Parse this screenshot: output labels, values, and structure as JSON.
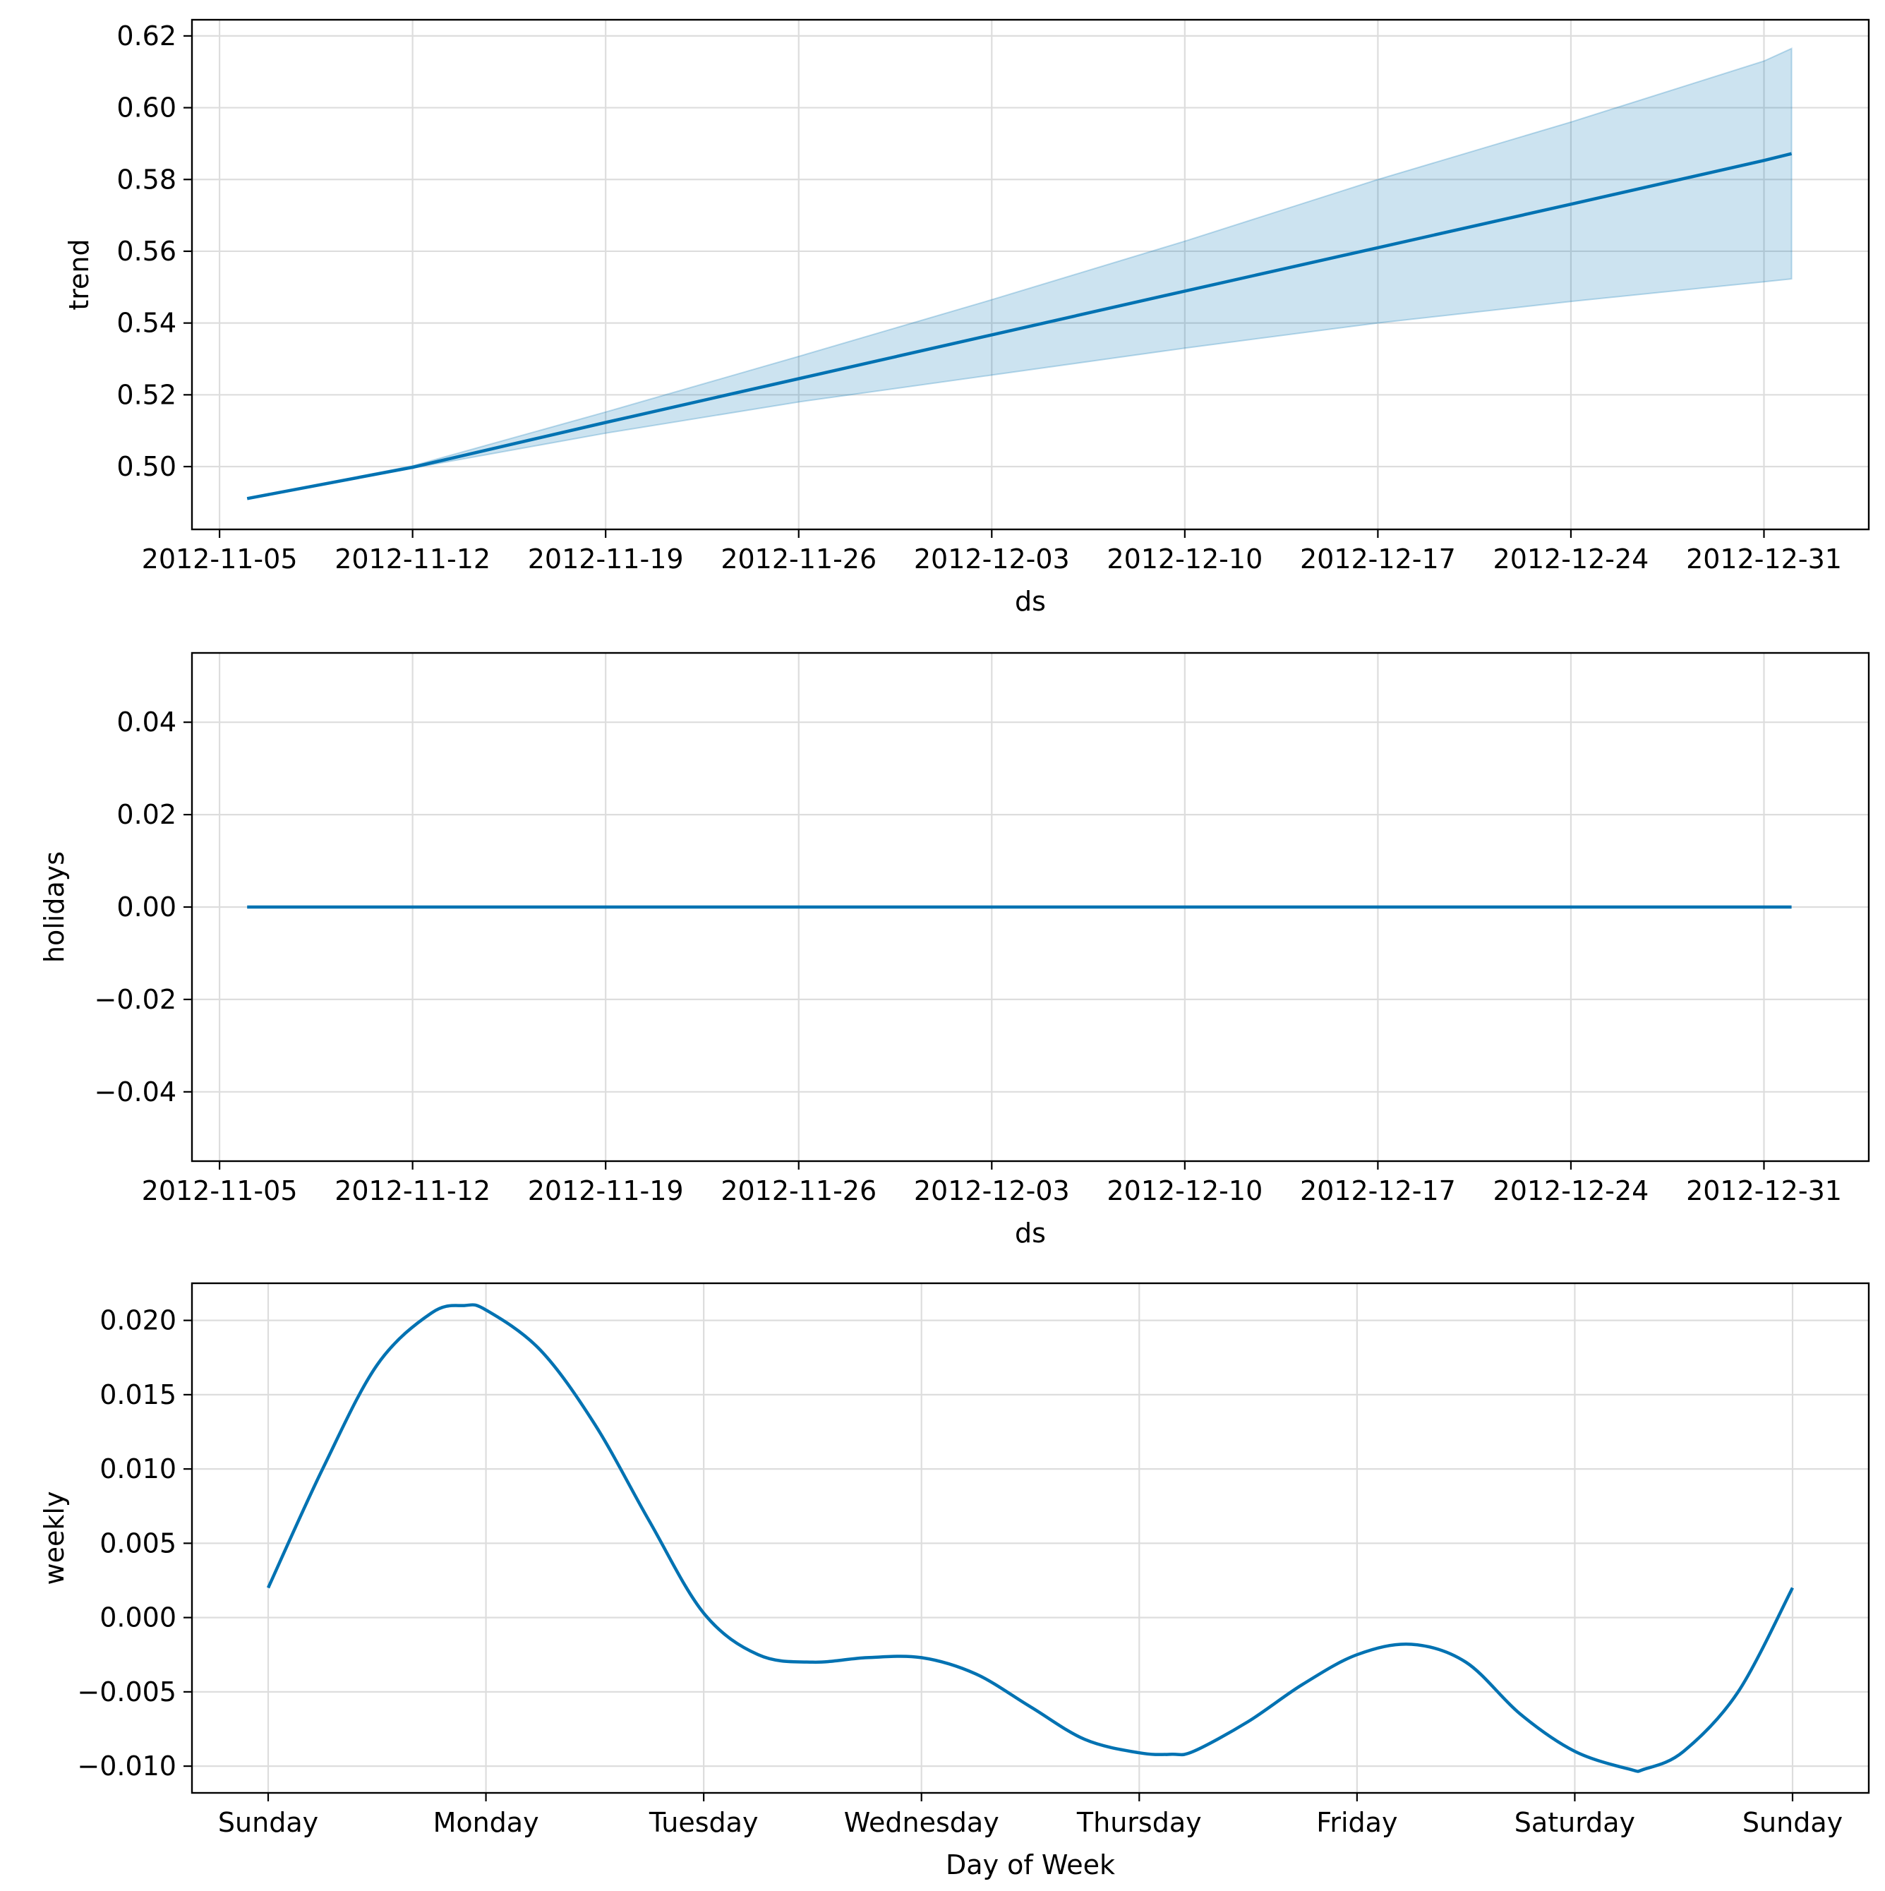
{
  "colors": {
    "line": "#0072b2",
    "band": "#0072b2",
    "grid": "#dddddd"
  },
  "chart_data": [
    {
      "type": "area",
      "name": "trend",
      "xlabel": "ds",
      "ylabel": "trend",
      "ylim": [
        0.4825,
        0.6245
      ],
      "x_tick_labels": [
        "2012-11-05",
        "2012-11-12",
        "2012-11-19",
        "2012-11-26",
        "2012-12-03",
        "2012-12-10",
        "2012-12-17",
        "2012-12-24",
        "2012-12-31"
      ],
      "x_tick_values": [
        -1,
        6,
        13,
        20,
        27,
        34,
        41,
        48,
        55
      ],
      "xlim": [
        -2.0,
        58.8
      ],
      "y_ticks": [
        0.5,
        0.52,
        0.54,
        0.56,
        0.58,
        0.6,
        0.62
      ],
      "y_tick_labels": [
        "0.50",
        "0.52",
        "0.54",
        "0.56",
        "0.58",
        "0.60",
        "0.62"
      ],
      "x": [
        0,
        6,
        13,
        20,
        27,
        34,
        41,
        48,
        55,
        56
      ],
      "y": [
        0.4911,
        0.4998,
        0.5123,
        0.5245,
        0.5367,
        0.5489,
        0.561,
        0.5731,
        0.5853,
        0.5872
      ],
      "lower": [
        0.4911,
        0.4996,
        0.5093,
        0.518,
        0.5255,
        0.533,
        0.54,
        0.546,
        0.5515,
        0.5523
      ],
      "upper": [
        0.4911,
        0.5002,
        0.5152,
        0.5307,
        0.5465,
        0.5628,
        0.58,
        0.596,
        0.613,
        0.6165
      ]
    },
    {
      "type": "line",
      "name": "holidays",
      "xlabel": "ds",
      "ylabel": "holidays",
      "ylim": [
        -0.055,
        0.055
      ],
      "x_tick_labels": [
        "2012-11-05",
        "2012-11-12",
        "2012-11-19",
        "2012-11-26",
        "2012-12-03",
        "2012-12-10",
        "2012-12-17",
        "2012-12-24",
        "2012-12-31"
      ],
      "x_tick_values": [
        -1,
        6,
        13,
        20,
        27,
        34,
        41,
        48,
        55
      ],
      "xlim": [
        -2.0,
        58.8
      ],
      "y_ticks": [
        -0.04,
        -0.02,
        0.0,
        0.02,
        0.04
      ],
      "y_tick_labels": [
        "−0.04",
        "−0.02",
        "0.00",
        "0.02",
        "0.04"
      ],
      "x": [
        0,
        56
      ],
      "y": [
        0.0,
        0.0
      ]
    },
    {
      "type": "line",
      "name": "weekly",
      "xlabel": "Day of Week",
      "ylabel": "weekly",
      "ylim": [
        -0.0118,
        0.0225
      ],
      "x_tick_labels": [
        "Sunday",
        "Monday",
        "Tuesday",
        "Wednesday",
        "Thursday",
        "Friday",
        "Saturday",
        "Sunday"
      ],
      "x_tick_values": [
        0,
        1,
        2,
        3,
        4,
        5,
        6,
        7
      ],
      "xlim": [
        -0.35,
        7.35
      ],
      "y_ticks": [
        -0.01,
        -0.005,
        0.0,
        0.005,
        0.01,
        0.015,
        0.02
      ],
      "y_tick_labels": [
        "−0.010",
        "−0.005",
        "0.000",
        "0.005",
        "0.010",
        "0.015",
        "0.020"
      ],
      "x": [
        0,
        0.25,
        0.5,
        0.75,
        0.9,
        1.0,
        1.25,
        1.5,
        1.75,
        2.0,
        2.25,
        2.5,
        2.75,
        3.0,
        3.25,
        3.5,
        3.75,
        4.0,
        4.15,
        4.25,
        4.5,
        4.75,
        5.0,
        5.25,
        5.5,
        5.75,
        6.0,
        6.25,
        6.32,
        6.5,
        6.75,
        7.0
      ],
      "y": [
        0.002,
        0.01,
        0.017,
        0.0205,
        0.021,
        0.0207,
        0.018,
        0.013,
        0.0065,
        0.0003,
        -0.0025,
        -0.003,
        -0.0027,
        -0.0027,
        -0.0038,
        -0.006,
        -0.0082,
        -0.0091,
        -0.0092,
        -0.009,
        -0.007,
        -0.0045,
        -0.0025,
        -0.0018,
        -0.003,
        -0.0065,
        -0.009,
        -0.0102,
        -0.0102,
        -0.009,
        -0.005,
        0.002
      ]
    }
  ]
}
